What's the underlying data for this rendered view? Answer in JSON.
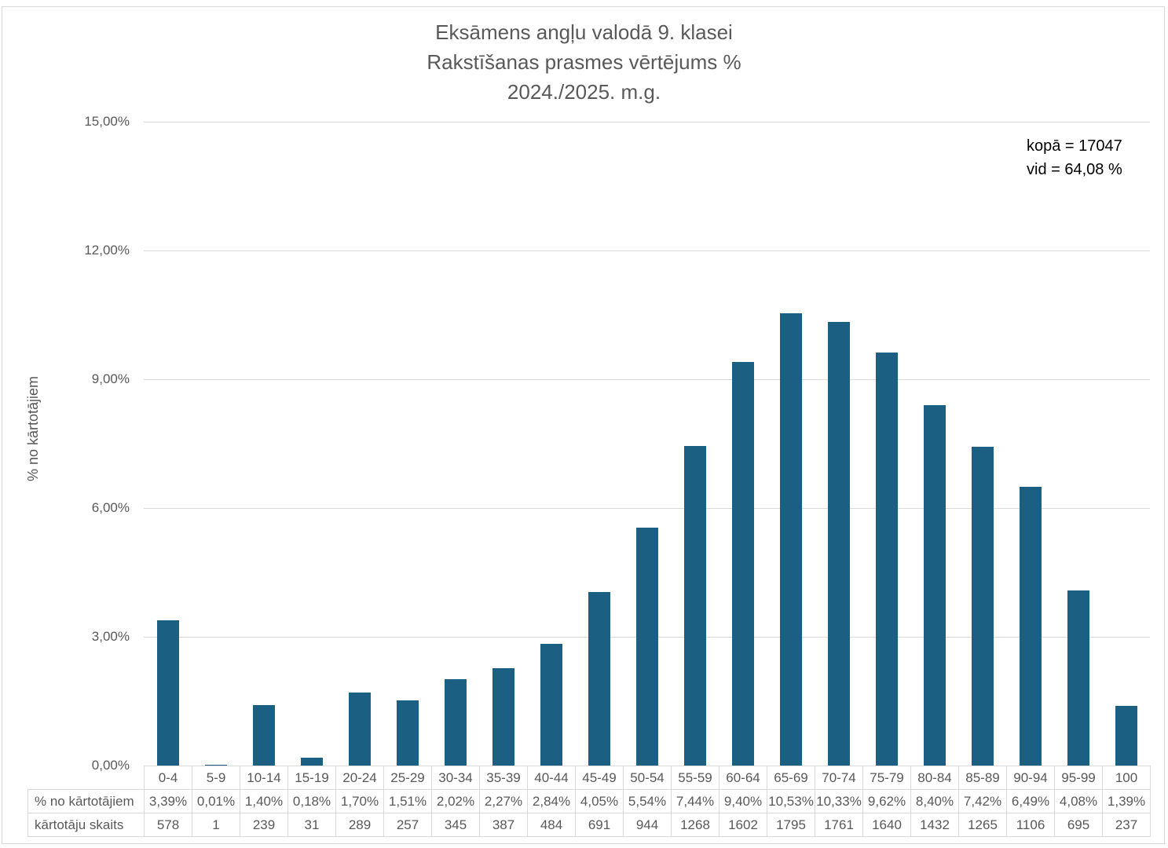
{
  "chart": {
    "title_lines": [
      "Eksāmens angļu valodā 9. klasei",
      "Rakstīšanas prasmes vērtējums %",
      "2024./2025. m.g."
    ],
    "annotation": {
      "total": "kopā = 17047",
      "average": "vid = 64,08 %"
    },
    "y_axis": {
      "label": "% no kārtotājiem",
      "ticks_top_to_bottom": [
        "15,00%",
        "12,00%",
        "9,00%",
        "6,00%",
        "3,00%",
        "0,00%"
      ]
    }
  },
  "chart_data": {
    "type": "bar",
    "title": "Eksāmens angļu valodā 9. klasei",
    "subtitle": "Rakstīšanas prasmes vērtējums %",
    "period": "2024./2025. m.g.",
    "xlabel": "",
    "ylabel": "% no kārtotājiem",
    "ylim": [
      0,
      15
    ],
    "ytick_step": 3,
    "grid": true,
    "legend": false,
    "bar_color": "#1B5F83",
    "categories": [
      "0-4",
      "5-9",
      "10-14",
      "15-19",
      "20-24",
      "25-29",
      "30-34",
      "35-39",
      "40-44",
      "45-49",
      "50-54",
      "55-59",
      "60-64",
      "65-69",
      "70-74",
      "75-79",
      "80-84",
      "85-89",
      "90-94",
      "95-99",
      "100"
    ],
    "series": [
      {
        "name": "% no kārtotājiem",
        "unit": "%",
        "values": [
          3.39,
          0.01,
          1.4,
          0.18,
          1.7,
          1.51,
          2.02,
          2.27,
          2.84,
          4.05,
          5.54,
          7.44,
          9.4,
          10.53,
          10.33,
          9.62,
          8.4,
          7.42,
          6.49,
          4.08,
          1.39
        ]
      },
      {
        "name": "kārtotāju skaits",
        "unit": "count",
        "values": [
          578,
          1,
          239,
          31,
          289,
          257,
          345,
          387,
          484,
          691,
          944,
          1268,
          1602,
          1795,
          1761,
          1640,
          1432,
          1265,
          1106,
          695,
          237
        ]
      }
    ],
    "annotations": [
      "kopā = 17047",
      "vid = 64,08 %"
    ],
    "total": 17047,
    "average_percent": 64.08
  },
  "table": {
    "percent_row_label": "% no kārtotājiem",
    "count_row_label": "kārtotāju skaits",
    "percent_values": [
      "3,39%",
      "0,01%",
      "1,40%",
      "0,18%",
      "1,70%",
      "1,51%",
      "2,02%",
      "2,27%",
      "2,84%",
      "4,05%",
      "5,54%",
      "7,44%",
      "9,40%",
      "10,53%",
      "10,33%",
      "9,62%",
      "8,40%",
      "7,42%",
      "6,49%",
      "4,08%",
      "1,39%"
    ],
    "count_values": [
      "578",
      "1",
      "239",
      "31",
      "289",
      "257",
      "345",
      "387",
      "484",
      "691",
      "944",
      "1268",
      "1602",
      "1795",
      "1761",
      "1640",
      "1432",
      "1265",
      "1106",
      "695",
      "237"
    ]
  },
  "colors": {
    "bar": "#1B5F83",
    "gridline": "#D9D9D9",
    "table_border": "#D9D9D9",
    "text_gray": "#595959",
    "annotation_text": "#000000",
    "frame_border": "#D9D9D9"
  }
}
